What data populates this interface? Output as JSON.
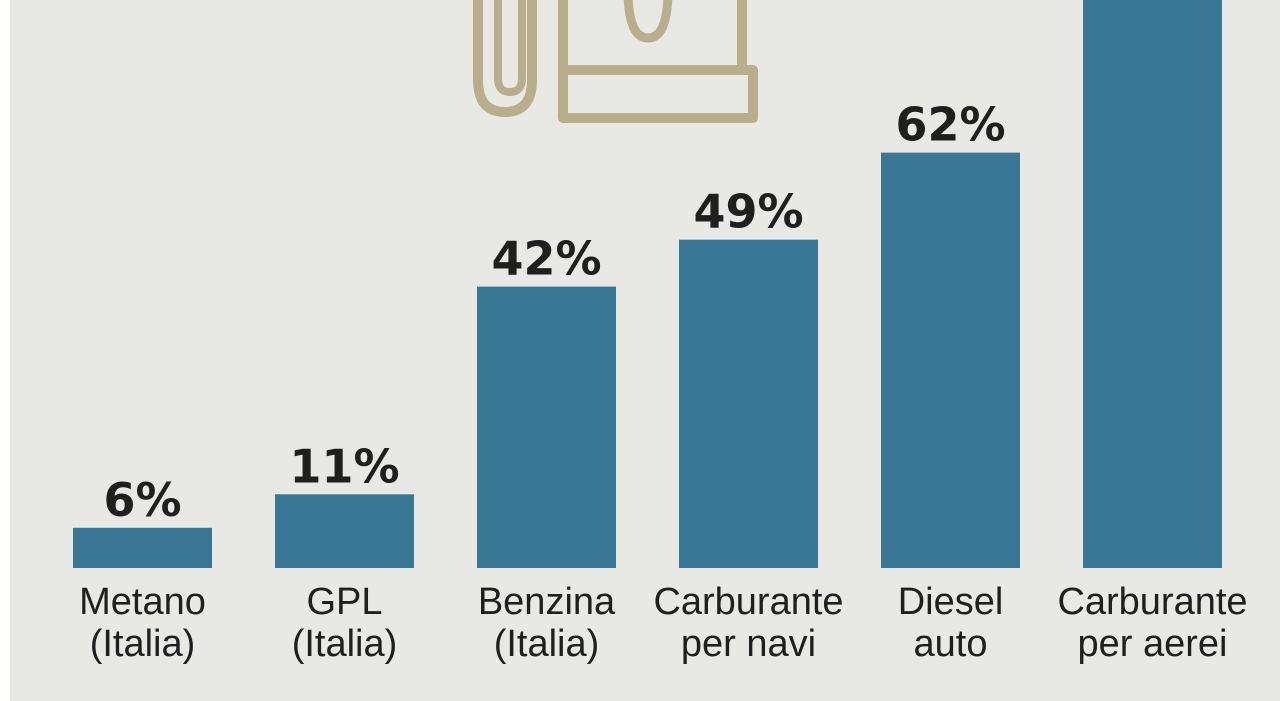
{
  "chart_data": {
    "type": "bar",
    "categories": [
      [
        "Metano",
        "(Italia)"
      ],
      [
        "GPL",
        "(Italia)"
      ],
      [
        "Benzina",
        "(Italia)"
      ],
      [
        "Carburante",
        "per navi"
      ],
      [
        "Diesel",
        "auto"
      ],
      [
        "Carburante",
        "per aerei"
      ]
    ],
    "values": [
      6,
      11,
      42,
      49,
      62,
      null
    ],
    "value_labels": [
      "6%",
      "11%",
      "42%",
      "49%",
      "62%",
      ""
    ],
    "note": "Last bar extends past top of view; its value label is not visible",
    "bar_color": "#3a7794",
    "ylim": [
      0,
      80
    ],
    "grid": false
  },
  "icon": {
    "name": "fuel-pump-icon",
    "color": "#b9ae8c"
  },
  "colors": {
    "background": "#e8e9e5",
    "text": "#1f1f1f"
  }
}
